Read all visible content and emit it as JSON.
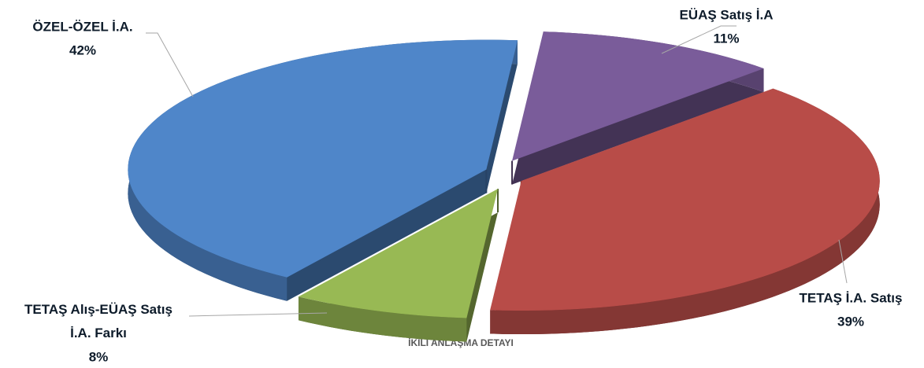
{
  "chart_data": {
    "type": "pie",
    "title": "İKİLİ ANLAŞMA DETAYI",
    "categories": [
      "EÜAŞ Satış İ.A",
      "TETAŞ İ.A. Satış",
      "TETAŞ Alış-EÜAŞ Satış İ.A. Farkı",
      "ÖZEL-ÖZEL İ.A."
    ],
    "values": [
      11,
      39,
      8,
      42
    ],
    "value_labels": [
      "11%",
      "39%",
      "8%",
      "42%"
    ],
    "colors": [
      "#7a5c9a",
      "#b84c48",
      "#98b954",
      "#4f86c9"
    ]
  }
}
